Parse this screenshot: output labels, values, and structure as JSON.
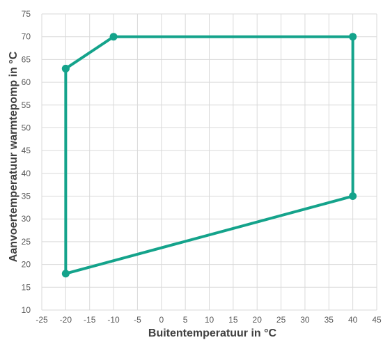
{
  "chart_data": {
    "type": "scatter",
    "title": "",
    "xlabel": "Buitentemperatuur in °C",
    "ylabel": "Aanvoertemperatuur warmtepomp in °C",
    "xlim": [
      -25,
      45
    ],
    "ylim": [
      10,
      75
    ],
    "xticks": [
      -25,
      -20,
      -15,
      -10,
      -5,
      0,
      5,
      10,
      15,
      20,
      25,
      30,
      35,
      40,
      45
    ],
    "yticks": [
      10,
      15,
      20,
      25,
      30,
      35,
      40,
      45,
      50,
      55,
      60,
      65,
      70,
      75
    ],
    "grid": true,
    "series": [
      {
        "x": [
          -20,
          -10,
          40,
          40,
          -20,
          -20
        ],
        "y": [
          63,
          70,
          70,
          35,
          18,
          63
        ],
        "color": "#14a38b"
      }
    ]
  }
}
